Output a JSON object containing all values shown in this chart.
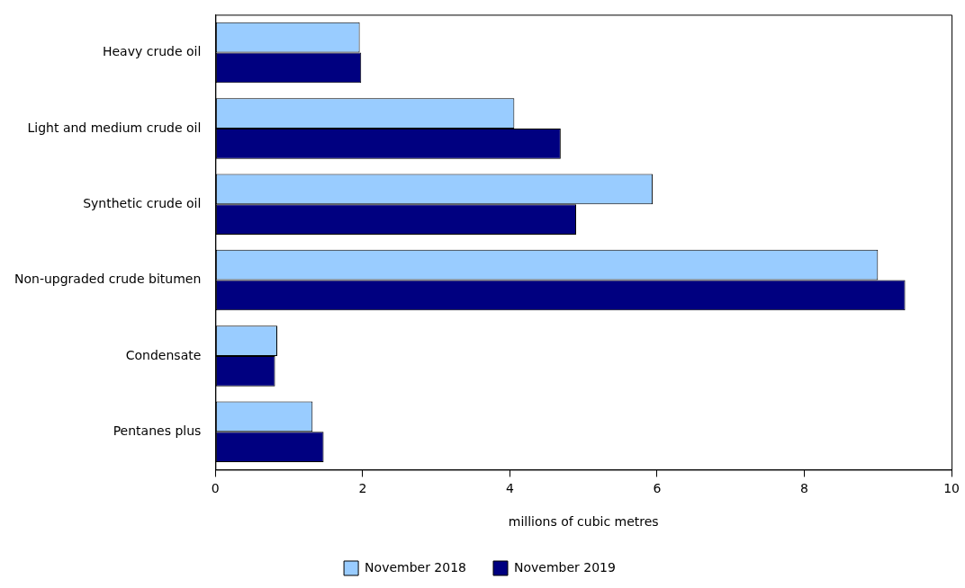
{
  "chart_data": {
    "type": "bar",
    "orientation": "horizontal",
    "xlabel": "millions of cubic metres",
    "categories": [
      "Heavy crude oil",
      "Light and medium crude oil",
      "Synthetic crude oil",
      "Non-upgraded crude bitumen",
      "Condensate",
      "Pentanes plus"
    ],
    "series": [
      {
        "name": "November 2018",
        "color": "#99ccff",
        "values": [
          1.96,
          4.06,
          5.94,
          9.0,
          0.84,
          1.32
        ]
      },
      {
        "name": "November 2019",
        "color": "#000080",
        "values": [
          1.98,
          4.69,
          4.9,
          9.37,
          0.81,
          1.47
        ]
      }
    ],
    "xlim": [
      0,
      10
    ],
    "xticks": [
      0,
      2,
      4,
      6,
      8,
      10
    ],
    "grid": false,
    "legend": "bottom"
  }
}
